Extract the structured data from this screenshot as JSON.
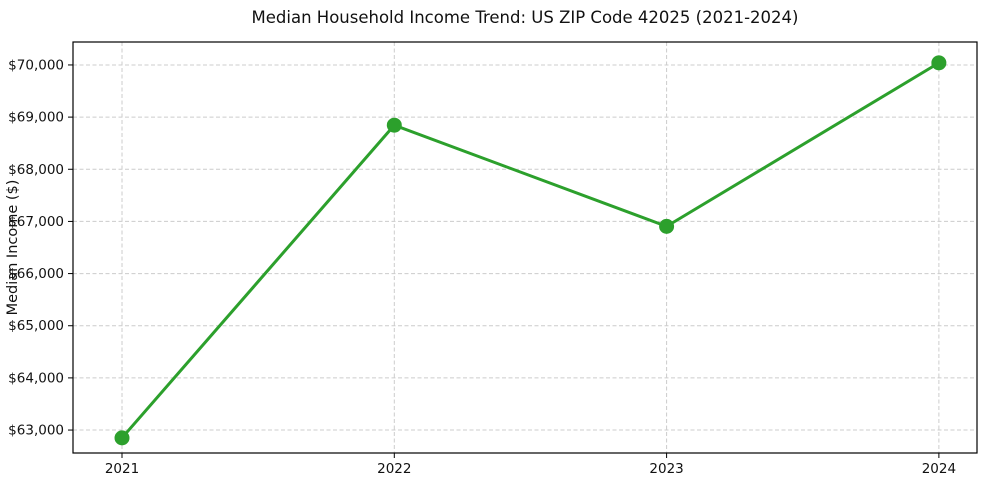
{
  "chart_data": {
    "type": "line",
    "title": "Median Household Income Trend: US ZIP Code 42025 (2021-2024)",
    "xlabel": "",
    "ylabel": "Median Income ($)",
    "x": [
      2021,
      2022,
      2023,
      2024
    ],
    "series": [
      {
        "name": "Median Household Income",
        "values": [
          62850,
          68845,
          66905,
          70040
        ],
        "color": "#2ca02c",
        "marker": "circle",
        "marker_radius": 7.5,
        "line_width": 3
      }
    ],
    "x_ticks": [
      {
        "value": 2021,
        "label": "2021"
      },
      {
        "value": 2022,
        "label": "2022"
      },
      {
        "value": 2023,
        "label": "2023"
      },
      {
        "value": 2024,
        "label": "2024"
      }
    ],
    "y_ticks": [
      {
        "value": 63000,
        "label": "$63,000"
      },
      {
        "value": 64000,
        "label": "$64,000"
      },
      {
        "value": 65000,
        "label": "$65,000"
      },
      {
        "value": 66000,
        "label": "$66,000"
      },
      {
        "value": 67000,
        "label": "$67,000"
      },
      {
        "value": 68000,
        "label": "$68,000"
      },
      {
        "value": 69000,
        "label": "$69,000"
      },
      {
        "value": 70000,
        "label": "$70,000"
      }
    ],
    "xlim": [
      2020.82,
      2024.14
    ],
    "ylim": [
      62560,
      70440
    ],
    "grid": true,
    "grid_style": "dashed",
    "grid_color": "#cccccc",
    "spine_color": "#000000",
    "background": "#ffffff",
    "legend_position": "none"
  }
}
